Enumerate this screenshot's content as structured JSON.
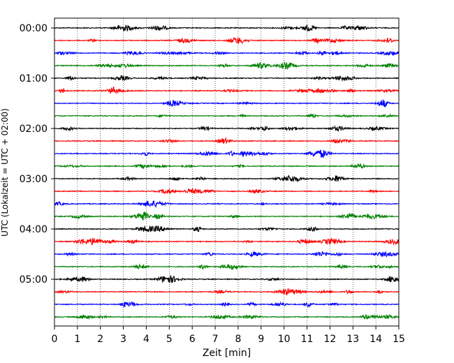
{
  "chart_data": {
    "type": "line",
    "subtype": "helicorder",
    "xlabel": "Zeit  [min]",
    "ylabel": "UTC (Lokalzeit = UTC + 02:00)",
    "xlim": [
      0,
      15
    ],
    "x_ticks": [
      "0",
      "1",
      "2",
      "3",
      "4",
      "5",
      "6",
      "7",
      "8",
      "9",
      "10",
      "11",
      "12",
      "13",
      "14",
      "15"
    ],
    "y_ticks": [
      "00:00",
      "01:00",
      "02:00",
      "03:00",
      "04:00",
      "05:00"
    ],
    "trace_interval_min": 15,
    "trace_count": 24,
    "trace_colors": [
      "#000000",
      "#ff0000",
      "#0000ff",
      "#008000"
    ],
    "grid": "vertical dotted at each minute",
    "traces": [
      {
        "start": "00:00",
        "color": "#000000"
      },
      {
        "start": "00:15",
        "color": "#ff0000"
      },
      {
        "start": "00:30",
        "color": "#0000ff"
      },
      {
        "start": "00:45",
        "color": "#008000"
      },
      {
        "start": "01:00",
        "color": "#000000"
      },
      {
        "start": "01:15",
        "color": "#ff0000"
      },
      {
        "start": "01:30",
        "color": "#0000ff"
      },
      {
        "start": "01:45",
        "color": "#008000"
      },
      {
        "start": "02:00",
        "color": "#000000"
      },
      {
        "start": "02:15",
        "color": "#ff0000"
      },
      {
        "start": "02:30",
        "color": "#0000ff"
      },
      {
        "start": "02:45",
        "color": "#008000"
      },
      {
        "start": "03:00",
        "color": "#000000"
      },
      {
        "start": "03:15",
        "color": "#ff0000"
      },
      {
        "start": "03:30",
        "color": "#0000ff"
      },
      {
        "start": "03:45",
        "color": "#008000"
      },
      {
        "start": "04:00",
        "color": "#000000"
      },
      {
        "start": "04:15",
        "color": "#ff0000"
      },
      {
        "start": "04:30",
        "color": "#0000ff"
      },
      {
        "start": "04:45",
        "color": "#008000"
      },
      {
        "start": "05:00",
        "color": "#000000"
      },
      {
        "start": "05:15",
        "color": "#ff0000"
      },
      {
        "start": "05:30",
        "color": "#0000ff"
      },
      {
        "start": "05:45",
        "color": "#008000"
      }
    ]
  }
}
